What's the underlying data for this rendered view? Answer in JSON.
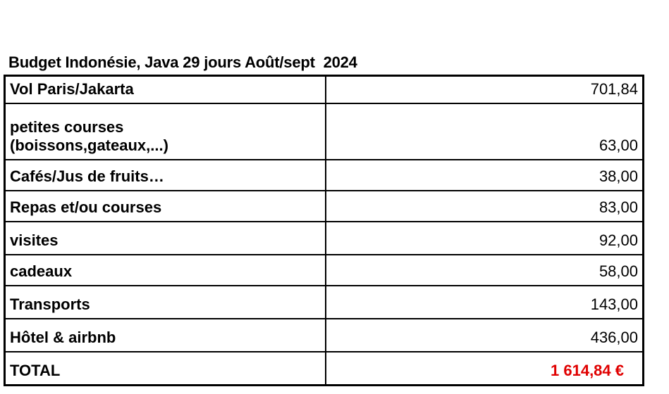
{
  "title": "Budget Indonésie, Java 29 jours Août/sept  2024",
  "rows": [
    {
      "label": "Vol Paris/Jakarta",
      "value": "701,84"
    },
    {
      "label_line1": "petites courses",
      "label_line2": "(boissons,gateaux,...)",
      "value": "63,00"
    },
    {
      "label": "Cafés/Jus de fruits…",
      "value": "38,00"
    },
    {
      "label": "Repas et/ou courses",
      "value": "83,00"
    },
    {
      "label": "visites",
      "value": "92,00"
    },
    {
      "label": "cadeaux",
      "value": "58,00"
    },
    {
      "label": "Transports",
      "value": "143,00"
    },
    {
      "label": "Hôtel & airbnb",
      "value": "436,00"
    }
  ],
  "total": {
    "label": "TOTAL",
    "value": "1 614,84 €",
    "color": "#e00000"
  }
}
